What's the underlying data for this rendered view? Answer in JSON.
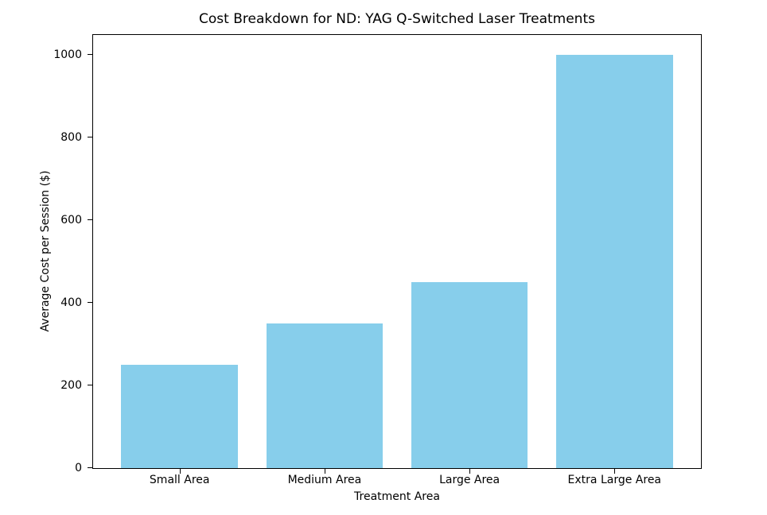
{
  "chart_data": {
    "type": "bar",
    "title": "Cost Breakdown for ND: YAG Q-Switched Laser Treatments",
    "categories": [
      "Small Area",
      "Medium Area",
      "Large Area",
      "Extra Large Area"
    ],
    "values": [
      250,
      350,
      450,
      1000
    ],
    "xlabel": "Treatment Area",
    "ylabel": "Average Cost per Session ($)",
    "yticks": [
      0,
      200,
      400,
      600,
      800,
      1000
    ],
    "ylim": [
      0,
      1048
    ],
    "bar_color": "#87CEEB",
    "grid": false,
    "legend_position": "none"
  }
}
